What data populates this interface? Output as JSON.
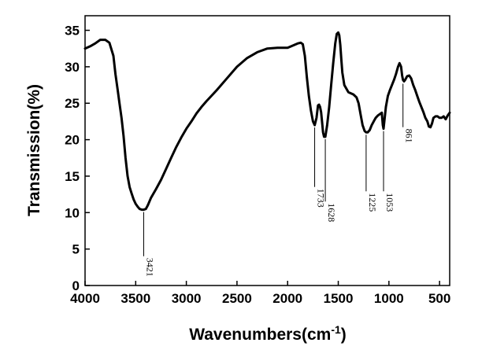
{
  "chart_data": {
    "type": "line",
    "title": "",
    "xlabel": "Wavenumbers(cm",
    "xlabel_sup": "-1",
    "xlabel_end": ")",
    "ylabel": "Transmission(%)",
    "xlim": [
      4000,
      400
    ],
    "ylim": [
      0,
      37
    ],
    "x_ticks": [
      4000,
      3500,
      3000,
      2500,
      2000,
      1500,
      1000,
      500
    ],
    "x_tick_labels": [
      "4000",
      "3500",
      "3000",
      "2500",
      "2000",
      "1500",
      "1000",
      "500"
    ],
    "y_ticks": [
      0,
      5,
      10,
      15,
      20,
      25,
      30,
      35
    ],
    "y_tick_labels": [
      "0",
      "5",
      "10",
      "15",
      "20",
      "25",
      "30",
      "35"
    ],
    "grid": false,
    "line_color": "#000000",
    "series": [
      {
        "x": [
          4000,
          3950,
          3900,
          3850,
          3800,
          3760,
          3720,
          3700,
          3680,
          3660,
          3640,
          3620,
          3600,
          3580,
          3560,
          3540,
          3520,
          3500,
          3480,
          3460,
          3440,
          3421,
          3400,
          3380,
          3350,
          3300,
          3250,
          3200,
          3150,
          3100,
          3050,
          3000,
          2950,
          2900,
          2850,
          2800,
          2700,
          2600,
          2500,
          2400,
          2300,
          2200,
          2100,
          2000,
          1950,
          1900,
          1870,
          1850,
          1830,
          1810,
          1790,
          1770,
          1750,
          1733,
          1715,
          1700,
          1690,
          1680,
          1670,
          1660,
          1650,
          1640,
          1628,
          1610,
          1590,
          1570,
          1550,
          1530,
          1515,
          1500,
          1490,
          1480,
          1470,
          1460,
          1440,
          1400,
          1350,
          1320,
          1300,
          1280,
          1260,
          1240,
          1225,
          1210,
          1190,
          1170,
          1150,
          1130,
          1110,
          1090,
          1070,
          1060,
          1053,
          1045,
          1030,
          1010,
          990,
          970,
          950,
          930,
          910,
          895,
          880,
          870,
          861,
          850,
          840,
          820,
          800,
          780,
          760,
          740,
          720,
          700,
          680,
          660,
          640,
          620,
          605,
          590,
          575,
          560,
          540,
          520,
          500,
          480,
          460,
          440,
          420,
          400
        ],
        "y": [
          32.5,
          32.8,
          33.2,
          33.7,
          33.7,
          33.3,
          31.5,
          29.0,
          27.0,
          25.0,
          23.0,
          20.5,
          17.5,
          15.0,
          13.5,
          12.6,
          11.8,
          11.2,
          10.8,
          10.5,
          10.4,
          10.4,
          10.5,
          11.0,
          12.0,
          13.2,
          14.5,
          16.0,
          17.5,
          19.0,
          20.3,
          21.5,
          22.5,
          23.6,
          24.5,
          25.3,
          26.8,
          28.4,
          30.0,
          31.2,
          32.0,
          32.5,
          32.6,
          32.6,
          32.9,
          33.2,
          33.3,
          33.1,
          31.5,
          28.5,
          26.0,
          24.0,
          22.5,
          22.0,
          23.0,
          24.7,
          24.8,
          24.5,
          23.8,
          22.5,
          21.0,
          20.4,
          20.4,
          22.0,
          24.5,
          27.5,
          30.5,
          33.2,
          34.5,
          34.7,
          34.3,
          33.0,
          31.0,
          29.2,
          27.5,
          26.5,
          26.2,
          25.8,
          25.0,
          23.5,
          22.0,
          21.2,
          21.0,
          21.0,
          21.3,
          22.0,
          22.5,
          23.0,
          23.3,
          23.5,
          23.7,
          22.0,
          21.5,
          22.5,
          24.5,
          26.0,
          26.8,
          27.5,
          28.2,
          29.0,
          30.0,
          30.5,
          30.0,
          28.8,
          28.2,
          28.0,
          28.2,
          28.7,
          28.8,
          28.4,
          27.5,
          26.8,
          26.0,
          25.2,
          24.5,
          23.8,
          23.0,
          22.5,
          21.8,
          21.7,
          22.2,
          23.0,
          23.2,
          23.2,
          23.0,
          23.0,
          23.2,
          22.8,
          23.3,
          23.7
        ]
      }
    ],
    "annotations": [
      {
        "label": "3421",
        "x": 3421,
        "y": 10.4,
        "label_y": 3.8
      },
      {
        "label": "1733",
        "x": 1733,
        "y": 22.0,
        "label_y": 13.3
      },
      {
        "label": "1628",
        "x": 1628,
        "y": 20.4,
        "label_y": 11.3
      },
      {
        "label": "1225",
        "x": 1225,
        "y": 21.0,
        "label_y": 12.7
      },
      {
        "label": "1053",
        "x": 1053,
        "y": 21.5,
        "label_y": 12.7
      },
      {
        "label": "861",
        "x": 861,
        "y": 28.0,
        "label_y": 21.5
      }
    ]
  }
}
